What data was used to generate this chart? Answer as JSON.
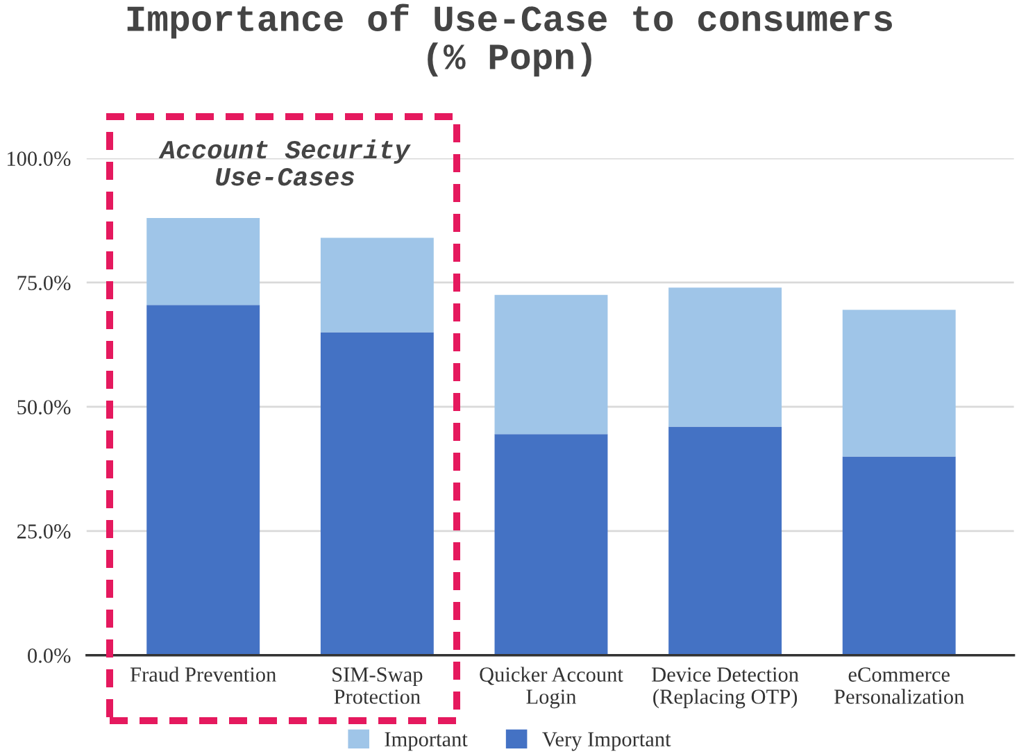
{
  "chart_data": {
    "type": "bar",
    "title": "Importance of Use-Case to consumers\n(% Popn)",
    "categories": [
      "Fraud Prevention",
      "SIM-Swap\nProtection",
      "Quicker Account\nLogin",
      "Device Detection\n(Replacing OTP)",
      "eCommerce\nPersonalization"
    ],
    "series": [
      {
        "name": "Very Important",
        "color": "#4472c4",
        "values": [
          70.5,
          65,
          44.5,
          46,
          40
        ]
      },
      {
        "name": "Important",
        "color": "#9fc5e8",
        "values": [
          17.5,
          19,
          28,
          28,
          29.5
        ]
      }
    ],
    "stacked": true,
    "ylim": [
      0,
      100
    ],
    "yticks": [
      {
        "value": 0,
        "label": "0.0%"
      },
      {
        "value": 25,
        "label": "25.0%"
      },
      {
        "value": 50,
        "label": "50.0%"
      },
      {
        "value": 75,
        "label": "75.0%"
      },
      {
        "value": 100,
        "label": "100.0%"
      }
    ],
    "annotations": [
      "Account Security\nUse-Cases"
    ],
    "grid": "y",
    "legend": "bottom"
  }
}
